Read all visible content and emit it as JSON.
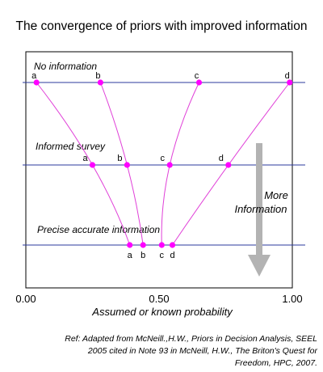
{
  "title": "The convergence of priors with improved information",
  "levels": [
    {
      "label": "No information",
      "y": 0
    },
    {
      "label": "Informed survey",
      "y": 1
    },
    {
      "label": "Precise accurate information",
      "y": 2
    }
  ],
  "points": [
    {
      "name": "a",
      "values": [
        0.04,
        0.25,
        0.39
      ]
    },
    {
      "name": "b",
      "values": [
        0.28,
        0.38,
        0.44
      ]
    },
    {
      "name": "c",
      "values": [
        0.65,
        0.54,
        0.51
      ]
    },
    {
      "name": "d",
      "values": [
        0.99,
        0.76,
        0.55
      ]
    }
  ],
  "x_ticks": [
    "0.00",
    "0.50",
    "1.00"
  ],
  "x_tick_values": [
    0,
    0.5,
    1
  ],
  "xlabel": "Assumed or known probability",
  "arrow_label": [
    "More",
    "Information"
  ],
  "reference": [
    "Ref: Adapted from McNeill.,H.W., Priors in Decision Analysis, SEEL",
    "2005 cited in Note 93 in McNeill, H.W., The Briton's Quest for",
    "Freedom, HPC, 2007."
  ],
  "colors": {
    "level_line": "#2b3a9c",
    "curve": "#e040d8",
    "point": "#ff00ff",
    "arrow": "#b3b3b3",
    "frame": "#000000"
  }
}
